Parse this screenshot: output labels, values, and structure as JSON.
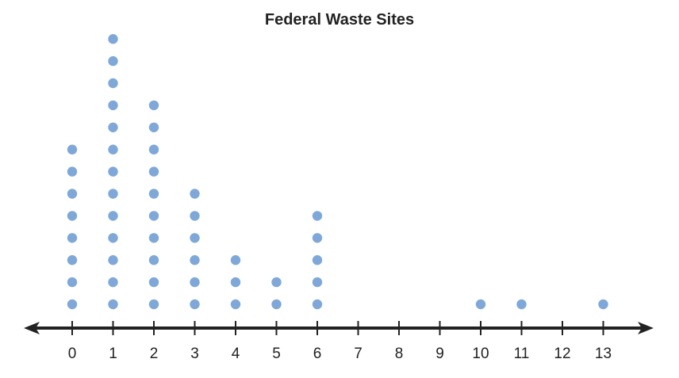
{
  "chart_data": {
    "type": "dot plot",
    "title": "Federal Waste Sites",
    "xlabel": "",
    "ylabel": "",
    "x_ticks": [
      0,
      1,
      2,
      3,
      4,
      5,
      6,
      7,
      8,
      9,
      10,
      11,
      12,
      13
    ],
    "points": [
      {
        "x": 0,
        "count": 8
      },
      {
        "x": 1,
        "count": 13
      },
      {
        "x": 2,
        "count": 10
      },
      {
        "x": 3,
        "count": 6
      },
      {
        "x": 4,
        "count": 3
      },
      {
        "x": 5,
        "count": 2
      },
      {
        "x": 6,
        "count": 5
      },
      {
        "x": 7,
        "count": 0
      },
      {
        "x": 8,
        "count": 0
      },
      {
        "x": 9,
        "count": 0
      },
      {
        "x": 10,
        "count": 1
      },
      {
        "x": 11,
        "count": 1
      },
      {
        "x": 12,
        "count": 0
      },
      {
        "x": 13,
        "count": 1
      }
    ],
    "dot_color": "#7fa8d8",
    "axis_color": "#222222"
  }
}
